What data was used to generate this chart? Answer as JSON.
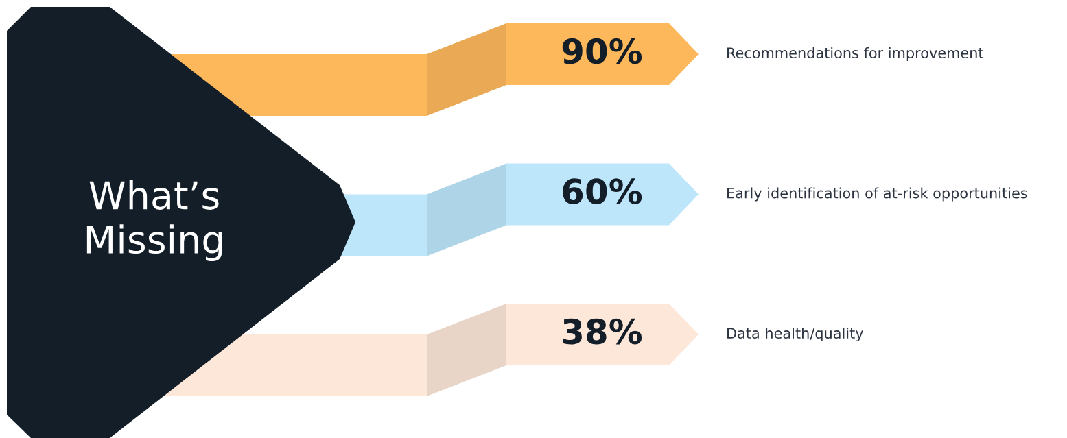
{
  "chart_data": {
    "type": "other",
    "title": "What’s Missing",
    "categories": [
      "Recommendations for improvement",
      "Early identification of at-risk opportunities",
      "Data health/quality"
    ],
    "values": [
      90,
      60,
      38
    ],
    "value_labels": [
      "90%",
      "60%",
      "38%"
    ],
    "colors": [
      "#fdb85c",
      "#bde6fb",
      "#fde7d8"
    ]
  }
}
